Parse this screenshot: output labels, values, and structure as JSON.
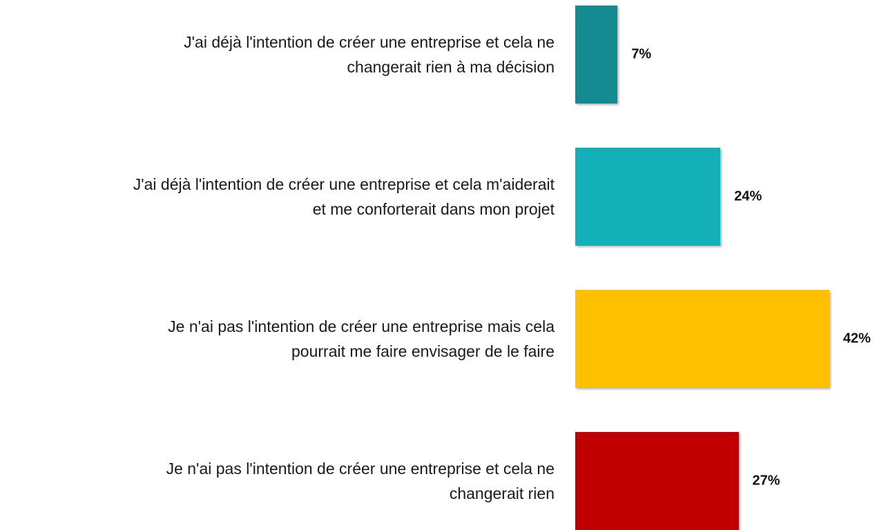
{
  "chart_data": {
    "type": "bar",
    "orientation": "horizontal",
    "categories": [
      "J'ai déjà l'intention de créer une entreprise et cela ne\nchangerait rien à ma décision",
      "J'ai déjà l'intention de créer une entreprise et cela m'aiderait\net me conforterait dans mon projet",
      "Je n'ai pas l'intention de créer une entreprise mais cela\npourrait me faire envisager de le faire",
      "Je n'ai pas l'intention de créer une entreprise et cela ne\nchangerait rien"
    ],
    "values": [
      7,
      24,
      42,
      27
    ],
    "value_labels": [
      "7%",
      "24%",
      "42%",
      "27%"
    ],
    "colors": [
      "#148a91",
      "#14b0b8",
      "#ffc000",
      "#c00000"
    ]
  }
}
